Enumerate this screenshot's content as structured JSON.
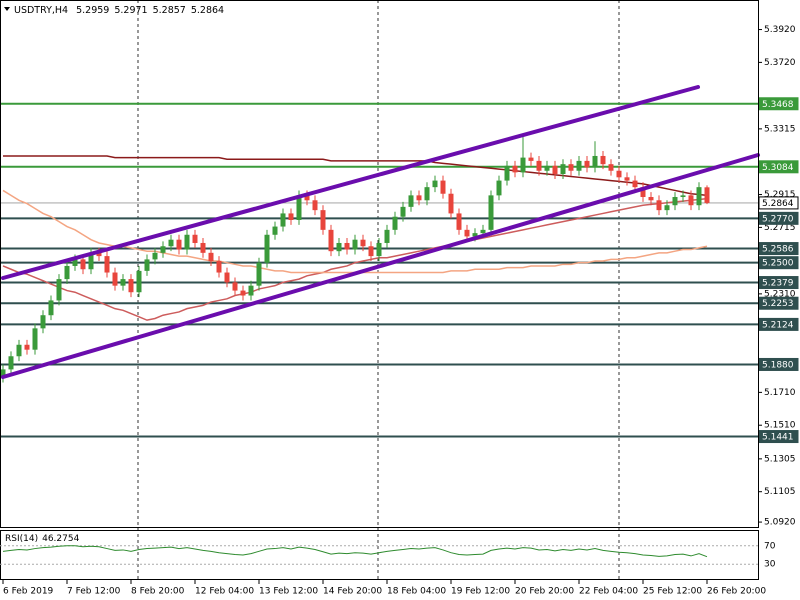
{
  "chart_data": {
    "type": "candlestick",
    "title": "USDTRY,H4",
    "categories": [
      "6 Feb 2019",
      null,
      null,
      null,
      null,
      null,
      null,
      null,
      "7 Feb 12:00",
      null,
      null,
      null,
      null,
      null,
      null,
      null,
      "8 Feb 20:00",
      null,
      null,
      null,
      null,
      null,
      null,
      null,
      "12 Feb 04:00",
      null,
      null,
      null,
      null,
      null,
      null,
      null,
      "13 Feb 12:00",
      null,
      null,
      null,
      null,
      null,
      null,
      null,
      "14 Feb 20:00",
      null,
      null,
      null,
      null,
      null,
      null,
      null,
      "18 Feb 04:00",
      null,
      null,
      null,
      null,
      null,
      null,
      null,
      "19 Feb 12:00",
      null,
      null,
      null,
      null,
      null,
      null,
      null,
      "20 Feb 20:00",
      null,
      null,
      null,
      null,
      null,
      null,
      null,
      "22 Feb 04:00",
      null,
      null,
      null,
      null,
      null,
      null,
      null,
      "25 Feb 12:00",
      null,
      null,
      null,
      null,
      null,
      null,
      null,
      "26 Feb 20:00"
    ],
    "open": [
      5.18,
      5.185,
      5.193,
      5.2,
      5.197,
      5.21,
      5.218,
      5.227,
      5.24,
      5.248,
      5.252,
      5.246,
      5.256,
      5.254,
      5.244,
      5.236,
      5.24,
      5.232,
      5.245,
      5.252,
      5.256,
      5.26,
      5.264,
      5.258,
      5.267,
      5.262,
      5.256,
      5.251,
      5.244,
      5.238,
      5.233,
      5.23,
      5.236,
      5.25,
      5.267,
      5.272,
      5.28,
      5.276,
      5.291,
      5.288,
      5.282,
      5.27,
      5.257,
      5.262,
      5.258,
      5.264,
      5.26,
      5.254,
      5.262,
      5.27,
      5.278,
      5.284,
      5.291,
      5.288,
      5.296,
      5.3,
      5.292,
      5.28,
      5.27,
      5.266,
      5.268,
      5.27,
      5.291,
      5.3,
      5.309,
      5.305,
      5.314,
      5.312,
      5.306,
      5.309,
      5.304,
      5.31,
      5.306,
      5.312,
      5.308,
      5.315,
      5.31,
      5.306,
      5.302,
      5.3,
      5.296,
      5.29,
      5.288,
      5.282,
      5.285,
      5.29,
      5.291,
      5.285,
      5.2959
    ],
    "high": [
      5.188,
      5.196,
      5.203,
      5.203,
      5.213,
      5.221,
      5.23,
      5.243,
      5.251,
      5.255,
      5.255,
      5.259,
      5.259,
      5.257,
      5.247,
      5.243,
      5.243,
      5.248,
      5.255,
      5.259,
      5.263,
      5.267,
      5.267,
      5.27,
      5.27,
      5.265,
      5.259,
      5.254,
      5.247,
      5.241,
      5.236,
      5.239,
      5.253,
      5.27,
      5.275,
      5.283,
      5.283,
      5.294,
      5.294,
      5.291,
      5.285,
      5.273,
      5.265,
      5.265,
      5.267,
      5.267,
      5.263,
      5.265,
      5.273,
      5.281,
      5.287,
      5.294,
      5.294,
      5.299,
      5.303,
      5.303,
      5.295,
      5.283,
      5.273,
      5.271,
      5.273,
      5.294,
      5.303,
      5.312,
      5.312,
      5.327,
      5.317,
      5.315,
      5.312,
      5.312,
      5.313,
      5.313,
      5.315,
      5.315,
      5.324,
      5.318,
      5.313,
      5.309,
      5.305,
      5.303,
      5.299,
      5.293,
      5.291,
      5.288,
      5.293,
      5.294,
      5.294,
      5.299,
      5.2971
    ],
    "low": [
      5.177,
      5.182,
      5.19,
      5.194,
      5.194,
      5.207,
      5.215,
      5.224,
      5.237,
      5.245,
      5.243,
      5.243,
      5.251,
      5.241,
      5.233,
      5.233,
      5.229,
      5.229,
      5.242,
      5.249,
      5.253,
      5.257,
      5.255,
      5.255,
      5.259,
      5.253,
      5.248,
      5.241,
      5.235,
      5.23,
      5.227,
      5.227,
      5.233,
      5.247,
      5.264,
      5.269,
      5.273,
      5.273,
      5.285,
      5.279,
      5.267,
      5.254,
      5.254,
      5.255,
      5.255,
      5.257,
      5.251,
      5.251,
      5.259,
      5.267,
      5.275,
      5.281,
      5.285,
      5.285,
      5.293,
      5.289,
      5.277,
      5.267,
      5.263,
      5.263,
      5.265,
      5.267,
      5.288,
      5.297,
      5.302,
      5.302,
      5.309,
      5.303,
      5.303,
      5.301,
      5.301,
      5.303,
      5.303,
      5.305,
      5.305,
      5.307,
      5.303,
      5.299,
      5.297,
      5.293,
      5.287,
      5.285,
      5.279,
      5.279,
      5.282,
      5.287,
      5.282,
      5.282,
      5.2857
    ],
    "close": [
      5.185,
      5.193,
      5.2,
      5.197,
      5.21,
      5.218,
      5.227,
      5.24,
      5.248,
      5.252,
      5.246,
      5.256,
      5.254,
      5.244,
      5.236,
      5.24,
      5.232,
      5.245,
      5.252,
      5.256,
      5.26,
      5.264,
      5.258,
      5.267,
      5.262,
      5.256,
      5.251,
      5.244,
      5.238,
      5.233,
      5.23,
      5.236,
      5.25,
      5.267,
      5.272,
      5.28,
      5.276,
      5.291,
      5.288,
      5.282,
      5.27,
      5.257,
      5.262,
      5.258,
      5.264,
      5.26,
      5.254,
      5.262,
      5.27,
      5.278,
      5.284,
      5.291,
      5.288,
      5.296,
      5.3,
      5.292,
      5.28,
      5.27,
      5.266,
      5.268,
      5.27,
      5.291,
      5.3,
      5.309,
      5.305,
      5.314,
      5.312,
      5.306,
      5.309,
      5.304,
      5.31,
      5.306,
      5.312,
      5.308,
      5.315,
      5.31,
      5.306,
      5.302,
      5.3,
      5.296,
      5.29,
      5.288,
      5.282,
      5.285,
      5.29,
      5.291,
      5.285,
      5.296,
      5.2864
    ],
    "up_color": "#3a9a3a",
    "down_color": "#e8453c",
    "ylim": [
      5.089,
      5.41
    ],
    "yticks": [
      {
        "value": 5.392,
        "label": "5.3920"
      },
      {
        "value": 5.372,
        "label": "5.3720"
      },
      {
        "value": 5.3315,
        "label": "5.3315"
      },
      {
        "value": 5.2915,
        "label": "5.2915"
      },
      {
        "value": 5.2715,
        "label": "5.2715"
      },
      {
        "value": 5.231,
        "label": "5.2310"
      },
      {
        "value": 5.171,
        "label": "5.1710"
      },
      {
        "value": 5.151,
        "label": "5.1510"
      },
      {
        "value": 5.1305,
        "label": "5.1305"
      },
      {
        "value": 5.1105,
        "label": "5.1105"
      },
      {
        "value": 5.092,
        "label": "5.0920"
      }
    ],
    "levels": [
      {
        "value": 5.3468,
        "color": "#3a9a3a"
      },
      {
        "value": 5.3084,
        "color": "#3a9a3a"
      },
      {
        "value": 5.277,
        "label": "5.2770",
        "color": "#2f4f4f"
      },
      {
        "value": 5.2586,
        "color": "#2f4f4f"
      },
      {
        "value": 5.25,
        "label": "5.2500",
        "color": "#2f4f4f"
      },
      {
        "value": 5.2379,
        "color": "#2f4f4f"
      },
      {
        "value": 5.2253,
        "color": "#2f4f4f"
      },
      {
        "value": 5.2124,
        "color": "#2f4f4f"
      },
      {
        "value": 5.188,
        "label": "5.1880",
        "color": "#2f4f4f"
      },
      {
        "value": 5.1441,
        "color": "#2f4f4f"
      }
    ],
    "overlays": [
      {
        "color": "#8b1a1a",
        "values": [
          5.315,
          5.315,
          5.315,
          5.315,
          5.315,
          5.315,
          5.315,
          5.315,
          5.315,
          5.315,
          5.315,
          5.315,
          5.315,
          5.315,
          5.314,
          5.314,
          5.314,
          5.314,
          5.314,
          5.314,
          5.314,
          5.314,
          5.314,
          5.314,
          5.314,
          5.314,
          5.314,
          5.314,
          5.313,
          5.313,
          5.313,
          5.313,
          5.313,
          5.313,
          5.313,
          5.313,
          5.313,
          5.313,
          5.313,
          5.313,
          5.313,
          5.312,
          5.312,
          5.312,
          5.312,
          5.312,
          5.312,
          5.312,
          5.312,
          5.312,
          5.312,
          5.312,
          5.312,
          5.312,
          5.311,
          5.3105,
          5.31,
          5.3095,
          5.309,
          5.3085,
          5.308,
          5.3075,
          5.307,
          5.3065,
          5.306,
          5.3055,
          5.305,
          5.3045,
          5.304,
          5.3035,
          5.303,
          5.3025,
          5.302,
          5.3015,
          5.301,
          5.3005,
          5.3,
          5.2995,
          5.299,
          5.2985,
          5.298,
          5.297,
          5.296,
          5.295,
          5.294,
          5.293,
          5.292,
          5.2915,
          5.291
        ]
      },
      {
        "color": "#cd5c5c",
        "values": [
          5.248,
          5.246,
          5.244,
          5.243,
          5.241,
          5.239,
          5.237,
          5.235,
          5.233,
          5.232,
          5.23,
          5.228,
          5.226,
          5.224,
          5.222,
          5.221,
          5.219,
          5.217,
          5.215,
          5.216,
          5.218,
          5.219,
          5.22,
          5.222,
          5.223,
          5.224,
          5.226,
          5.227,
          5.228,
          5.23,
          5.231,
          5.232,
          5.234,
          5.235,
          5.236,
          5.238,
          5.239,
          5.24,
          5.242,
          5.243,
          5.244,
          5.246,
          5.247,
          5.248,
          5.25,
          5.251,
          5.252,
          5.253,
          5.253,
          5.254,
          5.255,
          5.256,
          5.257,
          5.258,
          5.259,
          5.26,
          5.261,
          5.262,
          5.263,
          5.264,
          5.265,
          5.266,
          5.267,
          5.268,
          5.269,
          5.27,
          5.271,
          5.272,
          5.273,
          5.274,
          5.275,
          5.276,
          5.277,
          5.278,
          5.279,
          5.28,
          5.281,
          5.282,
          5.283,
          5.284,
          5.285,
          5.2855,
          5.286,
          5.2865,
          5.287,
          5.2875,
          5.288,
          5.2885,
          5.289
        ]
      },
      {
        "color": "#f4a582",
        "values": [
          5.294,
          5.291,
          5.288,
          5.286,
          5.283,
          5.28,
          5.278,
          5.275,
          5.272,
          5.27,
          5.267,
          5.264,
          5.262,
          5.261,
          5.26,
          5.26,
          5.259,
          5.258,
          5.257,
          5.257,
          5.256,
          5.255,
          5.254,
          5.254,
          5.253,
          5.252,
          5.251,
          5.251,
          5.25,
          5.249,
          5.248,
          5.248,
          5.247,
          5.246,
          5.245,
          5.245,
          5.244,
          5.244,
          5.244,
          5.244,
          5.244,
          5.244,
          5.244,
          5.244,
          5.244,
          5.244,
          5.244,
          5.244,
          5.244,
          5.244,
          5.244,
          5.244,
          5.244,
          5.244,
          5.244,
          5.244,
          5.245,
          5.245,
          5.245,
          5.246,
          5.246,
          5.246,
          5.246,
          5.247,
          5.247,
          5.247,
          5.248,
          5.248,
          5.248,
          5.248,
          5.249,
          5.249,
          5.25,
          5.25,
          5.251,
          5.251,
          5.252,
          5.252,
          5.253,
          5.253,
          5.254,
          5.255,
          5.256,
          5.256,
          5.257,
          5.258,
          5.258,
          5.259,
          5.26
        ]
      }
    ],
    "rsi": {
      "title": "RSI(14)",
      "color": "#2e8b2e",
      "ylim": [
        0,
        100
      ],
      "yticks": [
        70,
        30
      ],
      "values": [
        58,
        60,
        62,
        61,
        64,
        66,
        67,
        69,
        70,
        70,
        68,
        69,
        68,
        64,
        60,
        61,
        58,
        62,
        64,
        65,
        66,
        67,
        64,
        66,
        63,
        60,
        58,
        55,
        53,
        51,
        50,
        53,
        58,
        63,
        64,
        66,
        63,
        67,
        65,
        62,
        57,
        52,
        54,
        53,
        55,
        54,
        52,
        55,
        58,
        60,
        62,
        64,
        63,
        65,
        66,
        61,
        55,
        51,
        50,
        51,
        52,
        60,
        63,
        65,
        63,
        66,
        65,
        61,
        62,
        59,
        62,
        60,
        63,
        61,
        64,
        60,
        58,
        56,
        55,
        53,
        50,
        49,
        47,
        48,
        51,
        52,
        48,
        53,
        46.2754
      ]
    }
  }
}
